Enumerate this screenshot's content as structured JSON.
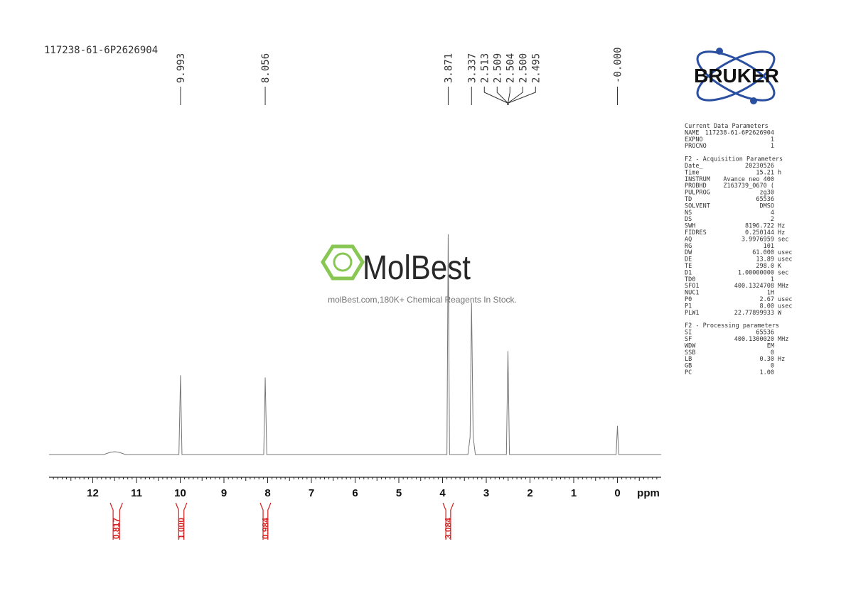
{
  "chart_data": {
    "type": "nmr",
    "title": "117238-61-6P2626904",
    "x_label": "ppm",
    "xlim": [
      13,
      -1
    ],
    "xticks": [
      12,
      11,
      10,
      9,
      8,
      7,
      6,
      5,
      4,
      3,
      2,
      1,
      0
    ],
    "ylim": [
      0,
      100
    ],
    "color": "#777777",
    "x": [
      13,
      11.75,
      11.6,
      11.5,
      11.4,
      11.25,
      10.03,
      9.993,
      9.96,
      8.09,
      8.056,
      8.02,
      3.9,
      3.871,
      3.84,
      3.42,
      3.37,
      3.337,
      3.3,
      3.25,
      2.54,
      2.504,
      2.47,
      0.03,
      0,
      -0.03,
      -1
    ],
    "values": [
      0,
      0,
      1,
      1.3,
      1,
      0,
      0,
      36,
      0,
      0,
      35,
      0,
      0,
      100,
      0,
      0,
      8,
      69,
      8,
      0,
      0,
      47,
      0,
      0,
      13,
      0,
      0
    ],
    "peaks": [
      9.993,
      8.056,
      3.871,
      3.337,
      {
        "value": 2.513,
        "label": "2.513"
      },
      {
        "value": 2.509,
        "label": "2.509"
      },
      {
        "value": 2.504,
        "label": "2.504"
      },
      {
        "value": 2.5,
        "label": "2.500"
      },
      {
        "value": 2.495,
        "label": "2.495"
      },
      {
        "value": 0,
        "label": "-0.000"
      }
    ],
    "integrals": {
      "ranges": [
        [
          11.6,
          11.32
        ],
        [
          10.1,
          9.85
        ],
        [
          8.17,
          7.93
        ],
        [
          3.99,
          3.75
        ]
      ],
      "values": [
        0.817,
        1,
        0.984,
        3.084
      ],
      "value_labels": [
        "0.817",
        "1.000",
        "0.984",
        "3.084"
      ],
      "color": "#d42020"
    }
  },
  "logo": "BRUKER",
  "watermark": {
    "brand": "MolBest",
    "tagline": "molBest.com,180K+ Chemical Reagents In Stock."
  },
  "parameters": [
    {
      "title": "Current Data Parameters",
      "rows": [
        [
          "NAME",
          "117238-61-6P2626904"
        ],
        [
          "EXPNO",
          "1"
        ],
        [
          "PROCNO",
          "1"
        ]
      ]
    },
    {
      "title": "F2 - Acquisition Parameters",
      "rows": [
        [
          "Date_",
          "20230526"
        ],
        [
          "Time",
          "15.21",
          "h"
        ],
        [
          "INSTRUM",
          "Avance neo 400"
        ],
        [
          "PROBHD",
          "Z163739_0670 ("
        ],
        [
          "PULPROG",
          "zg30"
        ],
        [
          "TD",
          "65536"
        ],
        [
          "SOLVENT",
          "DMSO"
        ],
        [
          "NS",
          "4"
        ],
        [
          "DS",
          "2"
        ],
        [
          "SWH",
          "8196.722",
          "Hz"
        ],
        [
          "FIDRES",
          "0.250144",
          "Hz"
        ],
        [
          "AQ",
          "3.9976959",
          "sec"
        ],
        [
          "RG",
          "101"
        ],
        [
          "DW",
          "61.000",
          "usec"
        ],
        [
          "DE",
          "13.89",
          "usec"
        ],
        [
          "TE",
          "298.0",
          "K"
        ],
        [
          "D1",
          "1.00000000",
          "sec"
        ],
        [
          "TD0",
          "1"
        ],
        [
          "SFO1",
          "400.1324708",
          "MHz"
        ],
        [
          "NUC1",
          "1H"
        ],
        [
          "P0",
          "2.67",
          "usec"
        ],
        [
          "P1",
          "8.00",
          "usec"
        ],
        [
          "PLW1",
          "22.77899933",
          "W"
        ]
      ]
    },
    {
      "title": "F2 - Processing parameters",
      "rows": [
        [
          "SI",
          "65536"
        ],
        [
          "SF",
          "400.1300020",
          "MHz"
        ],
        [
          "WDW",
          "EM"
        ],
        [
          "SSB",
          "0"
        ],
        [
          "LB",
          "0.30",
          "Hz"
        ],
        [
          "GB",
          "0"
        ],
        [
          "PC",
          "1.00"
        ]
      ]
    }
  ]
}
